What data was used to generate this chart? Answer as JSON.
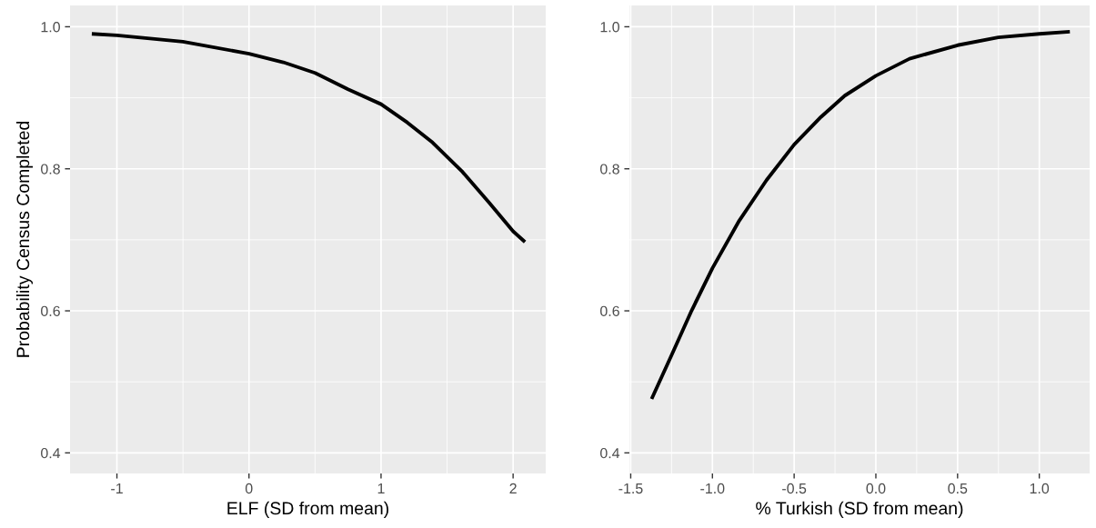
{
  "chart_data": [
    {
      "type": "line",
      "xlabel": "ELF (SD from mean)",
      "ylabel": "Probability Census Completed",
      "xlim": [
        -1.355,
        2.247
      ],
      "ylim": [
        0.371,
        1.03
      ],
      "xticks": [
        -1,
        0,
        1,
        2
      ],
      "yticks": [
        {
          "value": 0.4,
          "label": "0.4"
        },
        {
          "value": 0.6,
          "label": "0.6"
        },
        {
          "value": 0.8,
          "label": "0.8"
        },
        {
          "value": 1.0,
          "label": "1.0"
        }
      ],
      "grid": true,
      "series": [
        {
          "color": "#000000",
          "x": [
            -1.19,
            -1.0,
            -0.5,
            0,
            0.26,
            0.5,
            0.75,
            1.0,
            1.2,
            1.39,
            1.61,
            1.82,
            2.0,
            2.09
          ],
          "values": [
            0.99,
            0.988,
            0.979,
            0.962,
            0.95,
            0.935,
            0.912,
            0.891,
            0.865,
            0.837,
            0.797,
            0.752,
            0.712,
            0.697
          ]
        }
      ]
    },
    {
      "type": "line",
      "xlabel": "% Turkish (SD from mean)",
      "xlim": [
        -1.508,
        1.308
      ],
      "ylim": [
        0.371,
        1.03
      ],
      "xticks": [
        {
          "value": -1.5,
          "label": "-1.5"
        },
        {
          "value": -1.0,
          "label": "-1.0"
        },
        {
          "value": -0.5,
          "label": "-0.5"
        },
        {
          "value": 0.0,
          "label": "0.0"
        },
        {
          "value": 0.5,
          "label": "0.5"
        },
        {
          "value": 1.0,
          "label": "1.0"
        }
      ],
      "yticks": [
        {
          "value": 0.4,
          "label": "0.4"
        },
        {
          "value": 0.6,
          "label": "0.6"
        },
        {
          "value": 0.8,
          "label": "0.8"
        },
        {
          "value": 1.0,
          "label": "1.0"
        }
      ],
      "grid": true,
      "series": [
        {
          "color": "#000000",
          "x": [
            -1.372,
            -1.253,
            -1.128,
            -1.0,
            -0.836,
            -0.669,
            -0.5,
            -0.336,
            -0.19,
            0,
            0.206,
            0.5,
            0.749,
            1.0,
            1.187
          ],
          "values": [
            0.476,
            0.536,
            0.6,
            0.66,
            0.727,
            0.784,
            0.834,
            0.873,
            0.903,
            0.931,
            0.955,
            0.974,
            0.985,
            0.99,
            0.993
          ]
        }
      ]
    }
  ]
}
